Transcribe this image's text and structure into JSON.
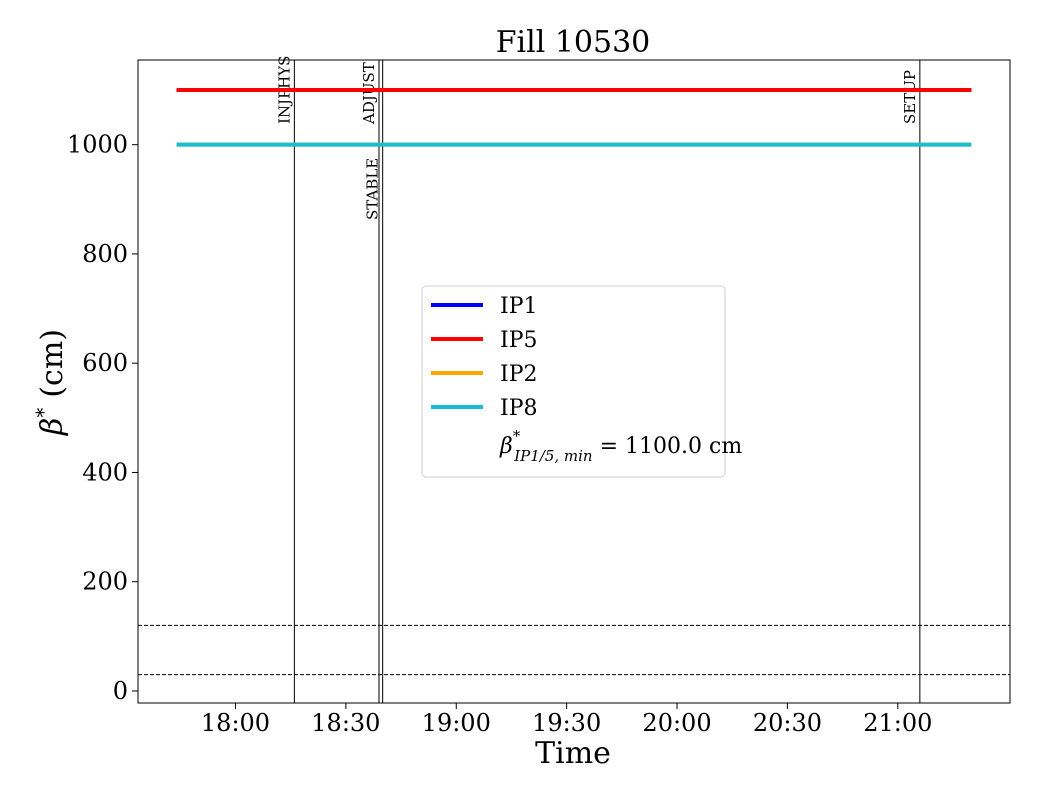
{
  "chart_data": {
    "type": "line",
    "title": "Fill 10530",
    "xlabel": "Time",
    "ylabel_symbol": "β",
    "ylabel_superscript": "*",
    "ylabel_unit": "(cm)",
    "x_tick_labels": [
      "18:00",
      "18:30",
      "19:00",
      "19:30",
      "20:00",
      "20:30",
      "21:00"
    ],
    "x_tick_minutes": [
      1080,
      1110,
      1140,
      1170,
      1200,
      1230,
      1260
    ],
    "xlim_minutes": [
      1053.5,
      1290.5
    ],
    "y_ticks": [
      0,
      200,
      400,
      600,
      800,
      1000
    ],
    "y_tick_labels": [
      "0",
      "200",
      "400",
      "600",
      "800",
      "1000"
    ],
    "ylim": [
      -22,
      1155
    ],
    "series": [
      {
        "name": "IP1",
        "color": "#0000ff",
        "x_minutes": [
          1064,
          1280
        ],
        "values": [
          1100,
          1100
        ]
      },
      {
        "name": "IP5",
        "color": "#ff0000",
        "x_minutes": [
          1064,
          1280
        ],
        "values": [
          1100,
          1100
        ]
      },
      {
        "name": "IP2",
        "color": "#ffa500",
        "x_minutes": [
          1064,
          1280
        ],
        "values": [
          1000,
          1000
        ]
      },
      {
        "name": "IP8",
        "color": "#17becf",
        "x_minutes": [
          1064,
          1280
        ],
        "values": [
          1000,
          1000
        ]
      }
    ],
    "horizontal_refs": [
      {
        "value": 120,
        "style": "dashed",
        "color": "#000000"
      },
      {
        "value": 30,
        "style": "dashed",
        "color": "#000000"
      }
    ],
    "events": [
      {
        "label": "INJPHYS",
        "x_minutes": 1096,
        "label_position": "top"
      },
      {
        "label": "ADJUST",
        "x_minutes": 1119,
        "label_position": "top"
      },
      {
        "label": "STABLE",
        "x_minutes": 1120,
        "label_position": "mid"
      },
      {
        "label": "SETUP",
        "x_minutes": 1266,
        "label_position": "top"
      }
    ],
    "legend": {
      "position": "center",
      "entries": [
        {
          "label": "IP1",
          "color": "#0000ff"
        },
        {
          "label": "IP5",
          "color": "#ff0000"
        },
        {
          "label": "IP2",
          "color": "#ffa500"
        },
        {
          "label": "IP8",
          "color": "#17becf"
        }
      ],
      "extra_text": {
        "symbol": "β",
        "sup": "*",
        "sub": "IP1/5, min",
        "value_text": " = 1100.0 cm"
      }
    },
    "grid": false
  }
}
